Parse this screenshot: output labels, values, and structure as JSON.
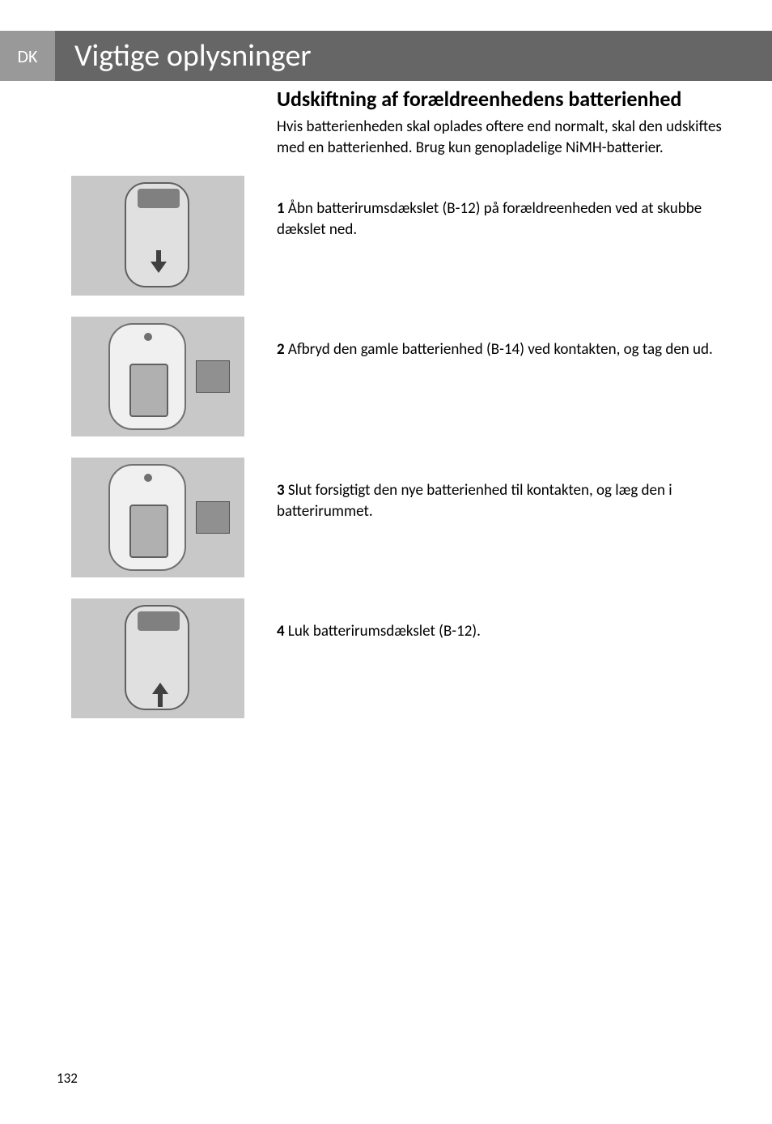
{
  "lang_code": "DK",
  "page_title": "Vigtige oplysninger",
  "section_title": "Udskiftning af forældreenhedens batterienhed",
  "intro": "Hvis batterienheden skal oplades oftere end normalt, skal den udskiftes med en batterienhed. Brug kun genopladelige NiMH-batterier.",
  "steps": [
    {
      "num": "1",
      "text": " Åbn batterirumsdækslet (B-12) på forældreenheden ved at skubbe dækslet ned."
    },
    {
      "num": "2",
      "text": " Afbryd den gamle batterienhed (B-14) ved kontakten, og tag den ud."
    },
    {
      "num": "3",
      "text": " Slut forsigtigt den nye batterienhed til kontakten, og læg den i batterirummet."
    },
    {
      "num": "4",
      "text": " Luk batterirumsdækslet (B-12)."
    }
  ],
  "page_number": "132",
  "colors": {
    "lang_tab_bg": "#999999",
    "title_bar_bg": "#666666",
    "header_text": "#ffffff",
    "body_text": "#000000",
    "image_bg": "#c8c8c8"
  }
}
